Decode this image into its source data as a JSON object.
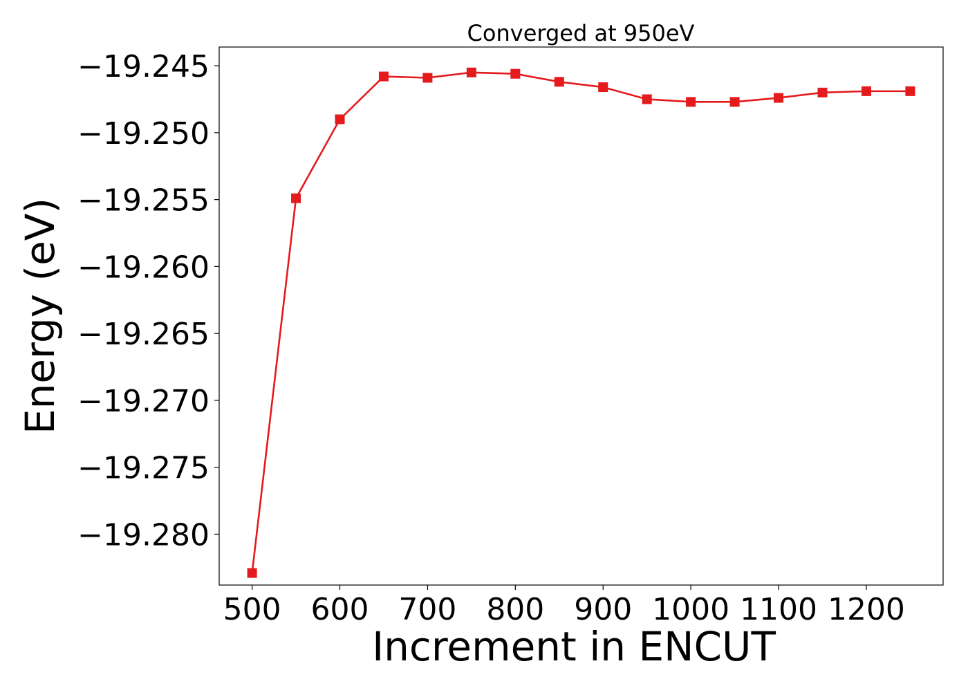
{
  "chart_data": {
    "type": "line",
    "title": "Converged at 950eV",
    "xlabel": "Increment in ENCUT",
    "ylabel": "Energy (eV)",
    "xlim": [
      462.5,
      1287.5
    ],
    "ylim": [
      -19.2838,
      -19.2436
    ],
    "xticks": [
      500,
      600,
      700,
      800,
      900,
      1000,
      1100,
      1200
    ],
    "xtick_labels": [
      "500",
      "600",
      "700",
      "800",
      "900",
      "1000",
      "1100",
      "1200"
    ],
    "yticks": [
      -19.245,
      -19.25,
      -19.255,
      -19.26,
      -19.265,
      -19.27,
      -19.275,
      -19.28
    ],
    "ytick_labels": [
      "−19.245",
      "−19.250",
      "−19.255",
      "−19.260",
      "−19.265",
      "−19.270",
      "−19.275",
      "−19.280"
    ],
    "grid": false,
    "legend": "none",
    "series": [
      {
        "color": "#e41a1c",
        "marker": "square",
        "x": [
          500,
          550,
          600,
          650,
          700,
          750,
          800,
          850,
          900,
          950,
          1000,
          1050,
          1100,
          1150,
          1200,
          1250
        ],
        "y": [
          -19.2829,
          -19.2549,
          -19.249,
          -19.2458,
          -19.2459,
          -19.2455,
          -19.2456,
          -19.2462,
          -19.2466,
          -19.2475,
          -19.2477,
          -19.2477,
          -19.2474,
          -19.247,
          -19.2469,
          -19.2469
        ]
      }
    ]
  }
}
